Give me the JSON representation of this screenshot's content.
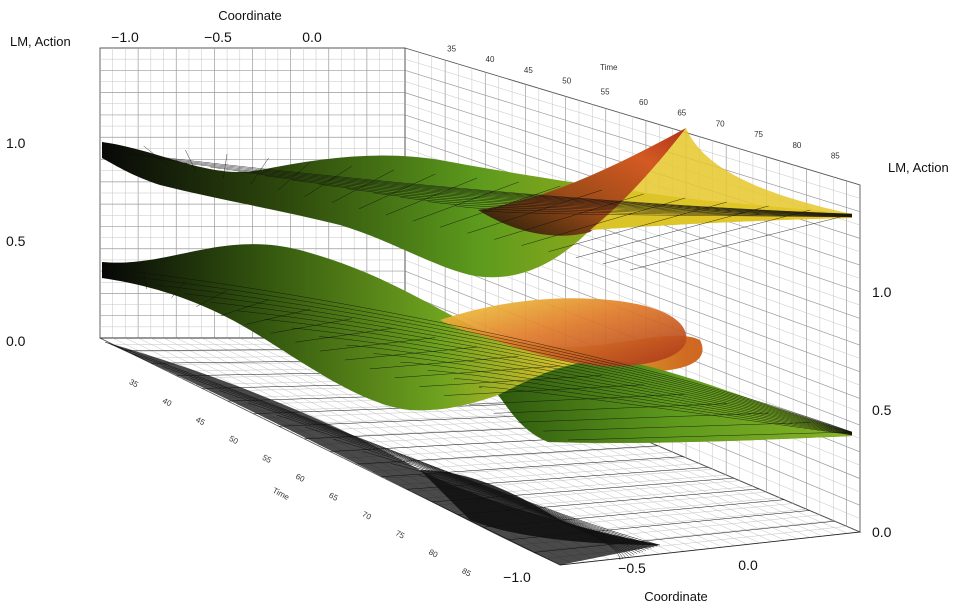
{
  "chart_data": {
    "type": "surface3d",
    "title": "",
    "axes": {
      "x": {
        "label": "Coordinate",
        "ticks": [
          "−1.0",
          "−0.5",
          "0.0"
        ],
        "range": [
          -1.0,
          0.4
        ]
      },
      "y": {
        "label": "Time",
        "ticks_back": [
          "35",
          "40",
          "45",
          "50",
          "55",
          "60",
          "65",
          "70",
          "75",
          "80",
          "85"
        ],
        "ticks_left": [
          "35",
          "40",
          "45",
          "50",
          "55",
          "60",
          "65",
          "70",
          "75",
          "80",
          "85"
        ],
        "ticks_left_label": "Time",
        "range": [
          35,
          85
        ]
      },
      "z_left": {
        "label": "LM, Action",
        "ticks": [
          "0.0",
          "0.5",
          "1.0"
        ],
        "range": [
          0.0,
          1.3
        ]
      },
      "z_right": {
        "label": "LM, Action",
        "ticks": [
          "0.0",
          "0.5",
          "1.0"
        ],
        "range": [
          0.0,
          1.3
        ]
      }
    },
    "surfaces": [
      {
        "layer": "action",
        "base_level": 1.0,
        "coloring": "green-yellow-orange gradient",
        "peak_color": "#c03a16"
      },
      {
        "layer": "lm",
        "base_level": 0.5,
        "coloring": "green-yellow-orange gradient",
        "peak_color": "#c8501c"
      },
      {
        "layer": "floor-projection",
        "base_level": 0.0,
        "coloring": "black wireframe"
      }
    ],
    "grid": true,
    "colors": {
      "green": "#4e8f1a",
      "yellow": "#e6c21c",
      "orange": "#d0561d",
      "dark": "#0e0e0e"
    }
  }
}
